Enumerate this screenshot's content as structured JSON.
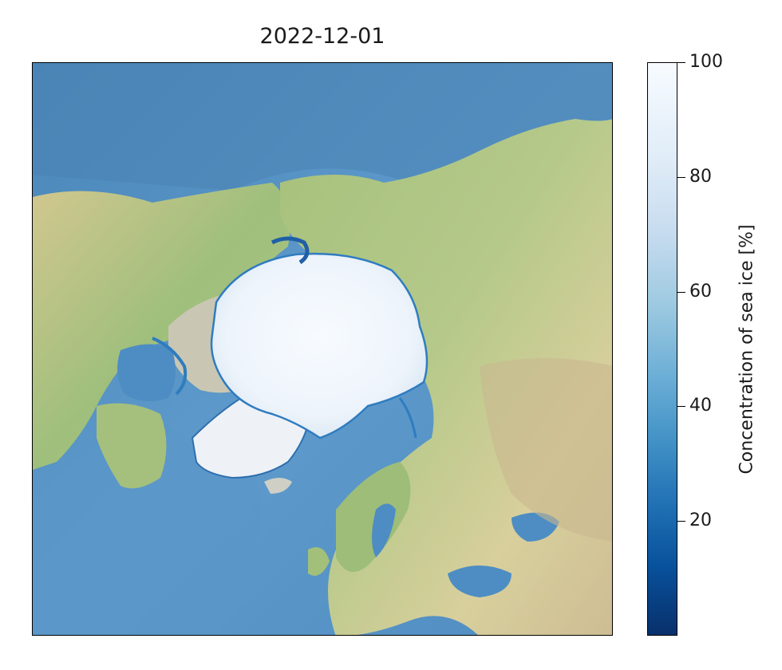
{
  "map": {
    "title": "2022-12-01",
    "projection": "north-polar-stereographic",
    "variable": "sea ice concentration",
    "colors": {
      "ocean_deep": "#3f7fb4",
      "ocean_shelf": "#7fb0d6",
      "land_low": "#a9c47f",
      "land_arid": "#d8cc96",
      "land_mountain": "#c7b58f",
      "ice_full": "#f7fbff",
      "ice_edge": "#2f7cc0"
    }
  },
  "colorbar": {
    "label": "Concentration of sea ice [%]",
    "colormap": "Blues_r",
    "range": [
      0,
      100
    ],
    "ticks": [
      "100",
      "80",
      "60",
      "40",
      "20"
    ]
  }
}
